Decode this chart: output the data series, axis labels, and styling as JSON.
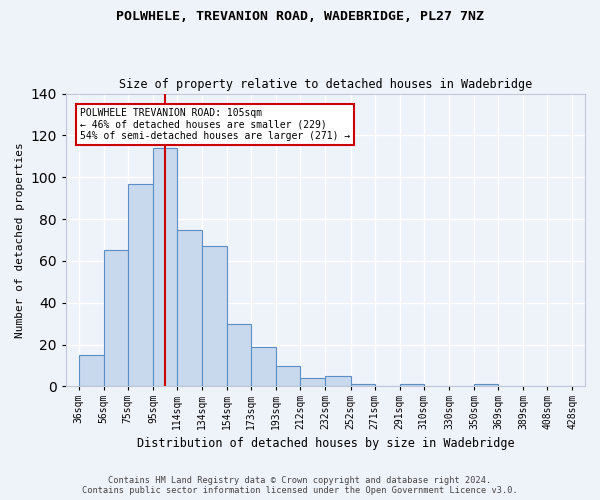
{
  "title1": "POLWHELE, TREVANION ROAD, WADEBRIDGE, PL27 7NZ",
  "title2": "Size of property relative to detached houses in Wadebridge",
  "xlabel": "Distribution of detached houses by size in Wadebridge",
  "ylabel": "Number of detached properties",
  "bar_labels": [
    "36sqm",
    "56sqm",
    "75sqm",
    "95sqm",
    "114sqm",
    "134sqm",
    "154sqm",
    "173sqm",
    "193sqm",
    "212sqm",
    "232sqm",
    "252sqm",
    "271sqm",
    "291sqm",
    "310sqm",
    "330sqm",
    "350sqm",
    "369sqm",
    "389sqm",
    "408sqm",
    "428sqm"
  ],
  "bar_heights": [
    15,
    65,
    97,
    114,
    75,
    67,
    30,
    19,
    10,
    4,
    5,
    1,
    0,
    1,
    0,
    0,
    1,
    0,
    0,
    0
  ],
  "bar_color": "#c8d9ee",
  "bar_edge_color": "#5b8ec4",
  "vline_x": 105,
  "vline_color": "#cc0000",
  "annotation_title": "POLWHELE TREVANION ROAD: 105sqm",
  "annotation_line1": "← 46% of detached houses are smaller (229)",
  "annotation_line2": "54% of semi-detached houses are larger (271) →",
  "annotation_box_color": "#ffffff",
  "annotation_box_edge": "#cc0000",
  "footer1": "Contains HM Land Registry data © Crown copyright and database right 2024.",
  "footer2": "Contains public sector information licensed under the Open Government Licence v3.0.",
  "ylim": [
    0,
    140
  ],
  "yticks": [
    0,
    20,
    40,
    60,
    80,
    100,
    120,
    140
  ],
  "background_color": "#eef2f9",
  "grid_color": "#ffffff"
}
